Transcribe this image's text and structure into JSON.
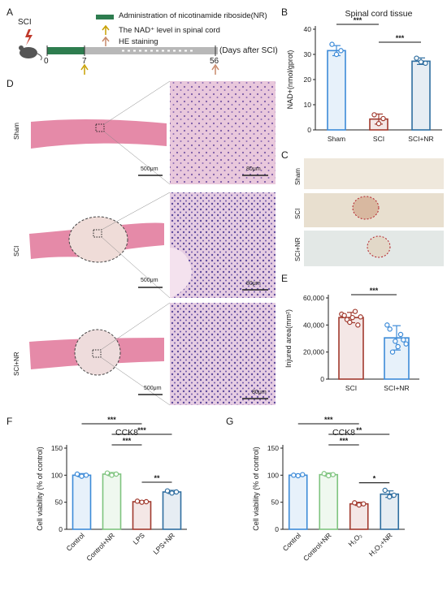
{
  "panel_letters": {
    "a": "A",
    "b": "B",
    "c": "C",
    "d": "D",
    "e": "E",
    "f": "F",
    "g": "G"
  },
  "panel_a": {
    "legend": [
      {
        "kind": "bar",
        "text": "Administration of nicotinamide riboside(NR)",
        "color": "#2e7d4f"
      },
      {
        "kind": "arrow",
        "text": "The NAD⁺ level in spinal cord",
        "color": "#c8a000"
      },
      {
        "kind": "arrow",
        "text": "HE staining",
        "color": "#c98a6a"
      }
    ],
    "sci_label": "SCI",
    "ticks": [
      "0",
      "7",
      "56"
    ],
    "axis_caption": "(Days after SCI)"
  },
  "panel_d": {
    "rows": [
      "Sham",
      "SCI",
      "SCI+NR"
    ],
    "scale_low": "500μm",
    "scale_high": "80μm"
  },
  "panel_c": {
    "rows": [
      "Sham",
      "SCI",
      "SCI+NR"
    ]
  },
  "chart_data": [
    {
      "id": "B",
      "type": "bar",
      "title": "Spinal cord tissue",
      "ylabel": "NAD+(nmol/gprot)",
      "categories": [
        "Sham",
        "SCI",
        "SCI+NR"
      ],
      "values": [
        31.5,
        4.3,
        27.3
      ],
      "errors": [
        2.0,
        2.0,
        1.3
      ],
      "points": [
        [
          34,
          30,
          31.5
        ],
        [
          6,
          2.5,
          4.5
        ],
        [
          28.5,
          27,
          26.5
        ]
      ],
      "colors": [
        "#3d8bd8",
        "#a13a2e",
        "#2f6ea0"
      ],
      "ylim": [
        0,
        40
      ],
      "yticks": [
        0,
        10,
        20,
        30,
        40
      ],
      "sig": [
        {
          "from": 0,
          "to": 1,
          "label": "***",
          "level": 0
        },
        {
          "from": 1,
          "to": 2,
          "label": "***",
          "level": 1
        }
      ]
    },
    {
      "id": "E",
      "type": "bar",
      "ylabel": "Injured area(mm²)",
      "categories": [
        "SCI",
        "SCI+NR"
      ],
      "values": [
        45500,
        30500
      ],
      "errors": [
        3800,
        9000
      ],
      "points": [
        [
          48000,
          47000,
          44000,
          42000,
          45500,
          50000,
          40000,
          46000
        ],
        [
          40000,
          37000,
          20000,
          28000,
          24000,
          33000,
          29000,
          26000
        ]
      ],
      "colors": [
        "#a13a2e",
        "#3d8bd8"
      ],
      "ylim": [
        0,
        60000
      ],
      "yticks": [
        0,
        20000,
        40000,
        60000
      ],
      "yticklabels": [
        "0",
        "20,000",
        "40,000",
        "60,000"
      ],
      "sig": [
        {
          "from": 0,
          "to": 1,
          "label": "***",
          "level": 0
        }
      ]
    },
    {
      "id": "F",
      "type": "bar",
      "title": "CCK8",
      "ylabel": "Cell viability (% of control)",
      "categories": [
        "Control",
        "Control+NR",
        "LPS",
        "LPS+NR"
      ],
      "values": [
        100,
        102,
        51,
        69
      ],
      "errors": [
        3,
        3,
        2,
        3
      ],
      "points": [
        [
          102,
          98,
          100
        ],
        [
          104,
          100,
          102
        ],
        [
          52,
          50,
          51
        ],
        [
          71,
          67,
          69
        ]
      ],
      "colors": [
        "#3d8bd8",
        "#7fc47f",
        "#a13a2e",
        "#2f6ea0"
      ],
      "ylim": [
        0,
        150
      ],
      "yticks": [
        0,
        50,
        100,
        150
      ],
      "sig": [
        {
          "from": 0,
          "to": 3,
          "label": "***",
          "level": 3
        },
        {
          "from": 0,
          "to": 2,
          "label": "***",
          "level": 2
        },
        {
          "from": 1,
          "to": 3,
          "label": "***",
          "level": 1
        },
        {
          "from": 1,
          "to": 2,
          "label": "***",
          "level": 0
        },
        {
          "from": 2,
          "to": 3,
          "label": "**",
          "level": -1
        }
      ]
    },
    {
      "id": "G",
      "type": "bar",
      "title": "CCK8",
      "ylabel": "Cell viability (% of control)",
      "categories": [
        "Control",
        "Control+NR",
        "H₂O₂",
        "H₂O₂+NR"
      ],
      "values": [
        100,
        101,
        47,
        65
      ],
      "errors": [
        2,
        3,
        3,
        6
      ],
      "points": [
        [
          100,
          99,
          101
        ],
        [
          103,
          99,
          101
        ],
        [
          49,
          45,
          47
        ],
        [
          72,
          60,
          63
        ]
      ],
      "colors": [
        "#3d8bd8",
        "#7fc47f",
        "#a13a2e",
        "#2f6ea0"
      ],
      "ylim": [
        0,
        150
      ],
      "yticks": [
        0,
        50,
        100,
        150
      ],
      "sig": [
        {
          "from": 0,
          "to": 3,
          "label": "**",
          "level": 3
        },
        {
          "from": 0,
          "to": 2,
          "label": "***",
          "level": 2
        },
        {
          "from": 1,
          "to": 3,
          "label": "**",
          "level": 1
        },
        {
          "from": 1,
          "to": 2,
          "label": "***",
          "level": 0
        },
        {
          "from": 2,
          "to": 3,
          "label": "*",
          "level": -1
        }
      ]
    }
  ]
}
